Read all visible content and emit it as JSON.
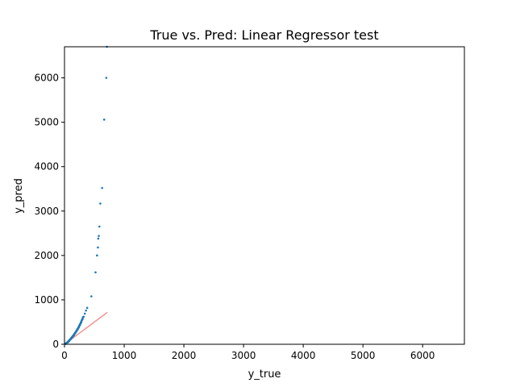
{
  "chart_data": {
    "type": "scatter",
    "title": "True vs. Pred: Linear Regressor test",
    "xlabel": "y_true",
    "ylabel": "y_pred",
    "xlim": [
      0,
      6700
    ],
    "ylim": [
      0,
      6700
    ],
    "xticks": [
      0,
      1000,
      2000,
      3000,
      4000,
      5000,
      6000
    ],
    "yticks": [
      0,
      1000,
      2000,
      3000,
      4000,
      5000,
      6000
    ],
    "tick_labels_x": [
      "0",
      "1000",
      "2000",
      "3000",
      "4000",
      "5000",
      "6000"
    ],
    "tick_labels_y": [
      "0",
      "1000",
      "2000",
      "3000",
      "4000",
      "5000",
      "6000"
    ],
    "grid": false,
    "colors": {
      "points": "#1f77b4",
      "reference_line": "#f08080"
    },
    "series": [
      {
        "points": [
          [
            8,
            5
          ],
          [
            12,
            8
          ],
          [
            18,
            12
          ],
          [
            22,
            18
          ],
          [
            28,
            22
          ],
          [
            32,
            28
          ],
          [
            38,
            33
          ],
          [
            42,
            38
          ],
          [
            48,
            45
          ],
          [
            52,
            50
          ],
          [
            58,
            55
          ],
          [
            62,
            62
          ],
          [
            68,
            68
          ],
          [
            72,
            75
          ],
          [
            78,
            82
          ],
          [
            82,
            90
          ],
          [
            88,
            98
          ],
          [
            92,
            105
          ],
          [
            98,
            115
          ],
          [
            105,
            125
          ],
          [
            110,
            135
          ],
          [
            118,
            148
          ],
          [
            125,
            160
          ],
          [
            132,
            172
          ],
          [
            140,
            185
          ],
          [
            148,
            198
          ],
          [
            155,
            210
          ],
          [
            162,
            225
          ],
          [
            170,
            240
          ],
          [
            178,
            255
          ],
          [
            185,
            270
          ],
          [
            192,
            285
          ],
          [
            200,
            300
          ],
          [
            208,
            318
          ],
          [
            215,
            335
          ],
          [
            222,
            352
          ],
          [
            230,
            370
          ],
          [
            238,
            390
          ],
          [
            245,
            410
          ],
          [
            252,
            430
          ],
          [
            260,
            450
          ],
          [
            268,
            470
          ],
          [
            275,
            492
          ],
          [
            282,
            515
          ],
          [
            290,
            540
          ],
          [
            298,
            565
          ],
          [
            305,
            590
          ],
          [
            312,
            615
          ],
          [
            50,
            40
          ],
          [
            60,
            48
          ],
          [
            70,
            65
          ],
          [
            80,
            78
          ],
          [
            100,
            110
          ],
          [
            120,
            140
          ],
          [
            140,
            170
          ],
          [
            160,
            205
          ],
          [
            180,
            250
          ],
          [
            200,
            290
          ],
          [
            220,
            330
          ],
          [
            240,
            380
          ],
          [
            260,
            430
          ],
          [
            280,
            490
          ],
          [
            300,
            560
          ],
          [
            320,
            620
          ],
          [
            340,
            690
          ],
          [
            360,
            760
          ],
          [
            380,
            820
          ],
          [
            450,
            1080
          ],
          [
            520,
            1620
          ],
          [
            545,
            2000
          ],
          [
            560,
            2180
          ],
          [
            565,
            2380
          ],
          [
            575,
            2440
          ],
          [
            585,
            2650
          ],
          [
            600,
            3170
          ],
          [
            630,
            3520
          ],
          [
            665,
            5060
          ],
          [
            700,
            6000
          ],
          [
            710,
            6700
          ]
        ]
      }
    ],
    "reference_line": {
      "x": [
        0,
        720
      ],
      "y": [
        0,
        720
      ]
    }
  }
}
